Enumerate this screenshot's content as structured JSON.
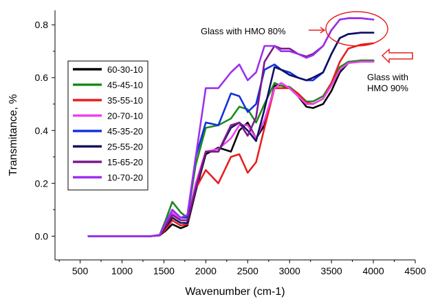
{
  "chart_data": {
    "type": "line",
    "xlabel": "Wavenumber (cm-1)",
    "ylabel": "Transmitance, %",
    "xlim": [
      200,
      4500
    ],
    "ylim": [
      -0.09,
      0.855
    ],
    "xticks": [
      500,
      1000,
      1500,
      2000,
      2500,
      3000,
      3500,
      4000,
      4500
    ],
    "yticks": [
      0.0,
      0.2,
      0.4,
      0.6,
      0.8
    ],
    "ytick_labels": [
      "0.0",
      "0.2",
      "0.4",
      "0.6",
      "0.8"
    ],
    "legend_position": "left",
    "grid": false,
    "series": [
      {
        "name": "60-30-10",
        "color": "#000000",
        "y": [
          0.0,
          0.0,
          0.0,
          0.0,
          0.0,
          0.003,
          0.02,
          0.045,
          0.03,
          0.04,
          0.17,
          0.31,
          0.335,
          0.32,
          0.4,
          0.43,
          0.37,
          0.42,
          0.57,
          0.57,
          0.56,
          0.53,
          0.49,
          0.485,
          0.5,
          0.55,
          0.62,
          0.655,
          0.665,
          0.665
        ]
      },
      {
        "name": "45-45-10",
        "color": "#1a8a1a",
        "y": [
          0.0,
          0.0,
          0.0,
          0.0,
          0.0,
          0.005,
          0.06,
          0.13,
          0.09,
          0.07,
          0.27,
          0.41,
          0.42,
          0.445,
          0.49,
          0.48,
          0.43,
          0.5,
          0.58,
          0.57,
          0.565,
          0.54,
          0.51,
          0.51,
          0.53,
          0.58,
          0.64,
          0.66,
          0.665,
          0.665
        ]
      },
      {
        "name": "35-55-10",
        "color": "#e81e1e",
        "y": [
          0.0,
          0.0,
          0.0,
          0.0,
          0.0,
          0.003,
          0.025,
          0.06,
          0.04,
          0.045,
          0.18,
          0.25,
          0.2,
          0.3,
          0.31,
          0.24,
          0.28,
          0.41,
          0.56,
          0.56,
          0.56,
          0.54,
          0.505,
          0.5,
          0.52,
          0.58,
          0.66,
          0.71,
          0.725,
          0.73
        ]
      },
      {
        "name": "20-70-10",
        "color": "#f040f0",
        "y": [
          0.0,
          0.0,
          0.0,
          0.0,
          0.0,
          0.003,
          0.04,
          0.09,
          0.06,
          0.06,
          0.2,
          0.32,
          0.33,
          0.37,
          0.42,
          0.42,
          0.37,
          0.44,
          0.56,
          0.58,
          0.56,
          0.53,
          0.5,
          0.5,
          0.52,
          0.57,
          0.63,
          0.655,
          0.66,
          0.66
        ]
      },
      {
        "name": "45-35-20",
        "color": "#1030e0",
        "y": [
          0.0,
          0.0,
          0.0,
          0.0,
          0.0,
          0.004,
          0.05,
          0.1,
          0.07,
          0.07,
          0.3,
          0.43,
          0.42,
          0.54,
          0.53,
          0.47,
          0.5,
          0.63,
          0.65,
          0.63,
          0.62,
          0.6,
          0.59,
          0.59,
          0.62,
          0.69,
          0.75,
          0.765,
          0.77,
          0.77
        ]
      },
      {
        "name": "25-55-20",
        "color": "#101060",
        "y": [
          0.0,
          0.0,
          0.0,
          0.0,
          0.0,
          0.003,
          0.035,
          0.07,
          0.05,
          0.05,
          0.18,
          0.32,
          0.32,
          0.41,
          0.43,
          0.4,
          0.36,
          0.48,
          0.64,
          0.63,
          0.61,
          0.6,
          0.59,
          0.6,
          0.62,
          0.69,
          0.75,
          0.765,
          0.77,
          0.77
        ]
      },
      {
        "name": "15-65-20",
        "color": "#7a1a8a",
        "y": [
          0.0,
          0.0,
          0.0,
          0.0,
          0.0,
          0.004,
          0.04,
          0.08,
          0.06,
          0.06,
          0.18,
          0.32,
          0.32,
          0.42,
          0.43,
          0.38,
          0.45,
          0.66,
          0.72,
          0.71,
          0.71,
          0.69,
          0.68,
          0.69,
          0.72,
          0.78,
          0.82,
          0.825,
          0.825,
          0.82
        ]
      },
      {
        "name": "10-70-20",
        "color": "#9b30f0",
        "y": [
          0.0,
          0.0,
          0.0,
          0.0,
          0.0,
          0.004,
          0.05,
          0.1,
          0.07,
          0.08,
          0.3,
          0.56,
          0.56,
          0.62,
          0.65,
          0.59,
          0.62,
          0.72,
          0.72,
          0.7,
          0.7,
          0.69,
          0.675,
          0.685,
          0.72,
          0.78,
          0.82,
          0.825,
          0.825,
          0.82
        ]
      }
    ],
    "x": [
      600,
      800,
      1000,
      1200,
      1350,
      1450,
      1520,
      1600,
      1700,
      1780,
      1880,
      2000,
      2150,
      2300,
      2400,
      2500,
      2600,
      2700,
      2820,
      2900,
      3000,
      3100,
      3200,
      3280,
      3400,
      3500,
      3600,
      3700,
      3850,
      4000
    ],
    "annotations": [
      {
        "text": "Glass with HMO 80%",
        "x": 3100,
        "y": 0.795
      },
      {
        "text": "Glass with",
        "x": 4050,
        "y": 0.62
      },
      {
        "text": "HMO 90%",
        "x": 4050,
        "y": 0.565
      }
    ]
  }
}
